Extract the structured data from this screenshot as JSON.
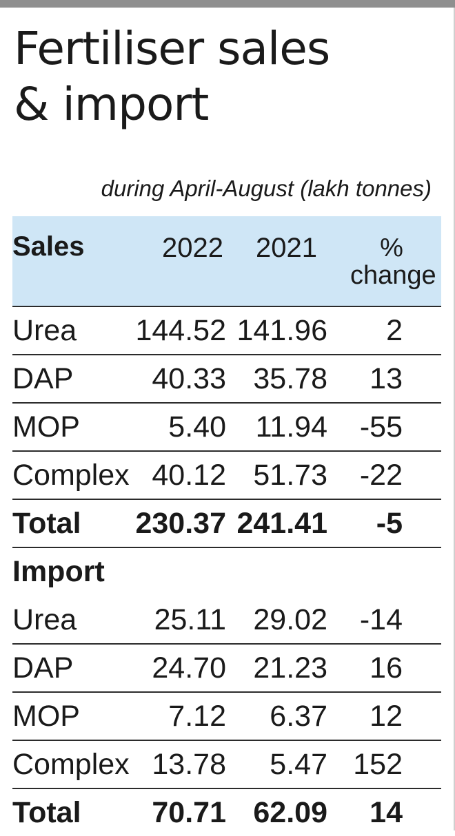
{
  "title_line1": "Fertiliser sales",
  "title_line2": "& import",
  "subtitle": "during April-August (lakh tonnes)",
  "header": {
    "label": "Sales",
    "year1": "2022",
    "year2": "2021",
    "pct_line1": "%",
    "pct_line2": "change"
  },
  "sales": [
    {
      "name": "Urea",
      "y2022": "144.52",
      "y2021": "141.96",
      "change": "2"
    },
    {
      "name": "DAP",
      "y2022": "40.33",
      "y2021": "35.78",
      "change": "13"
    },
    {
      "name": "MOP",
      "y2022": "5.40",
      "y2021": "11.94",
      "change": "-55"
    },
    {
      "name": "Complex",
      "y2022": "40.12",
      "y2021": "51.73",
      "change": "-22"
    },
    {
      "name": "Total",
      "y2022": "230.37",
      "y2021": "241.41",
      "change": "-5"
    }
  ],
  "import_label": "Import",
  "imports": [
    {
      "name": "Urea",
      "y2022": "25.11",
      "y2021": "29.02",
      "change": "-14"
    },
    {
      "name": "DAP",
      "y2022": "24.70",
      "y2021": "21.23",
      "change": "16"
    },
    {
      "name": "MOP",
      "y2022": "7.12",
      "y2021": "6.37",
      "change": "12"
    },
    {
      "name": "Complex",
      "y2022": "13.78",
      "y2021": "5.47",
      "change": "152"
    },
    {
      "name": "Total",
      "y2022": "70.71",
      "y2021": "62.09",
      "change": "14"
    }
  ],
  "colors": {
    "header_bg": "#cfe6f6",
    "top_bar": "#8f8f8f",
    "text": "#1a1a1a"
  }
}
